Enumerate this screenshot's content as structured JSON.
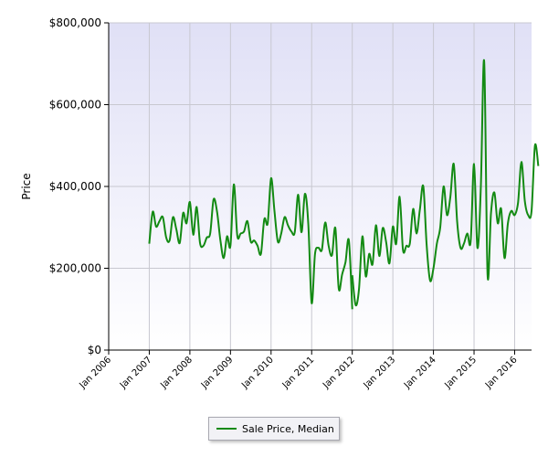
{
  "chart_data": {
    "type": "line",
    "title": "",
    "xlabel": "",
    "ylabel": "Price",
    "ylim": [
      0,
      800000
    ],
    "xlim": [
      "2006-01",
      "2016-06"
    ],
    "y_ticks": [
      {
        "value": 0,
        "label": "$0"
      },
      {
        "value": 200000,
        "label": "$200,000"
      },
      {
        "value": 400000,
        "label": "$400,000"
      },
      {
        "value": 600000,
        "label": "$600,000"
      },
      {
        "value": 800000,
        "label": "$800,000"
      }
    ],
    "x_ticks": [
      {
        "value": "2006-01",
        "label": "Jan 2006"
      },
      {
        "value": "2007-01",
        "label": "Jan 2007"
      },
      {
        "value": "2008-01",
        "label": "Jan 2008"
      },
      {
        "value": "2009-01",
        "label": "Jan 2009"
      },
      {
        "value": "2010-01",
        "label": "Jan 2010"
      },
      {
        "value": "2011-01",
        "label": "Jan 2011"
      },
      {
        "value": "2012-01",
        "label": "Jan 2012"
      },
      {
        "value": "2013-01",
        "label": "Jan 2013"
      },
      {
        "value": "2014-01",
        "label": "Jan 2014"
      },
      {
        "value": "2015-01",
        "label": "Jan 2015"
      },
      {
        "value": "2016-01",
        "label": "Jan 2016"
      }
    ],
    "grid": true,
    "legend_placement": "bottom-center",
    "colors": {
      "line": "#138a13",
      "plot_background_top": "#e0e0f6",
      "plot_background_bottom": "#ffffff",
      "grid": "#c8c8d0"
    },
    "series": [
      {
        "name": "Sale Price, Median",
        "segments": [
          [
            [
              "2007-01",
              260000
            ],
            [
              "2007-02",
              338000
            ],
            [
              "2007-03",
              302000
            ],
            [
              "2007-04",
              315000
            ],
            [
              "2007-05",
              325000
            ],
            [
              "2007-06",
              275000
            ],
            [
              "2007-07",
              268000
            ],
            [
              "2007-08",
              325000
            ],
            [
              "2007-09",
              295000
            ],
            [
              "2007-10",
              262000
            ],
            [
              "2007-11",
              335000
            ],
            [
              "2007-12",
              310000
            ],
            [
              "2008-01",
              362000
            ],
            [
              "2008-02",
              282000
            ],
            [
              "2008-03",
              350000
            ],
            [
              "2008-04",
              262000
            ],
            [
              "2008-05",
              255000
            ],
            [
              "2008-06",
              275000
            ],
            [
              "2008-07",
              285000
            ],
            [
              "2008-08",
              368000
            ],
            [
              "2008-09",
              340000
            ],
            [
              "2008-10",
              270000
            ],
            [
              "2008-11",
              225000
            ],
            [
              "2008-12",
              278000
            ],
            [
              "2009-01",
              255000
            ],
            [
              "2009-02",
              405000
            ],
            [
              "2009-03",
              280000
            ],
            [
              "2009-04",
              285000
            ],
            [
              "2009-05",
              290000
            ],
            [
              "2009-06",
              315000
            ],
            [
              "2009-07",
              265000
            ],
            [
              "2009-08",
              268000
            ],
            [
              "2009-09",
              255000
            ],
            [
              "2009-10",
              235000
            ],
            [
              "2009-11",
              320000
            ],
            [
              "2009-12",
              310000
            ],
            [
              "2010-01",
              420000
            ],
            [
              "2010-02",
              340000
            ],
            [
              "2010-03",
              265000
            ],
            [
              "2010-04",
              285000
            ],
            [
              "2010-05",
              325000
            ],
            [
              "2010-06",
              305000
            ],
            [
              "2010-07",
              290000
            ],
            [
              "2010-08",
              288000
            ],
            [
              "2010-09",
              380000
            ],
            [
              "2010-10",
              288000
            ],
            [
              "2010-11",
              382000
            ],
            [
              "2010-12",
              310000
            ],
            [
              "2011-01",
              115000
            ],
            [
              "2011-02",
              235000
            ],
            [
              "2011-03",
              250000
            ],
            [
              "2011-04",
              245000
            ],
            [
              "2011-05",
              312000
            ],
            [
              "2011-06",
              255000
            ],
            [
              "2011-07",
              232000
            ],
            [
              "2011-08",
              298000
            ],
            [
              "2011-09",
              150000
            ],
            [
              "2011-10",
              185000
            ],
            [
              "2011-11",
              215000
            ],
            [
              "2011-12",
              268000
            ],
            [
              "2012-01",
              100000
            ]
          ],
          [
            [
              "2012-01",
              183000
            ],
            [
              "2012-02",
              110000
            ],
            [
              "2012-03",
              150000
            ],
            [
              "2012-04",
              278000
            ],
            [
              "2012-05",
              180000
            ],
            [
              "2012-06",
              235000
            ],
            [
              "2012-07",
              210000
            ],
            [
              "2012-08",
              305000
            ],
            [
              "2012-09",
              230000
            ],
            [
              "2012-10",
              298000
            ],
            [
              "2012-11",
              265000
            ],
            [
              "2012-12",
              212000
            ],
            [
              "2013-01",
              302000
            ],
            [
              "2013-02",
              260000
            ],
            [
              "2013-03",
              375000
            ],
            [
              "2013-04",
              245000
            ],
            [
              "2013-05",
              255000
            ],
            [
              "2013-06",
              260000
            ],
            [
              "2013-07",
              345000
            ],
            [
              "2013-08",
              285000
            ],
            [
              "2013-09",
              345000
            ],
            [
              "2013-10",
              400000
            ],
            [
              "2013-11",
              255000
            ],
            [
              "2013-12",
              170000
            ],
            [
              "2014-01",
              200000
            ],
            [
              "2014-02",
              260000
            ],
            [
              "2014-03",
              300000
            ],
            [
              "2014-04",
              400000
            ],
            [
              "2014-05",
              330000
            ],
            [
              "2014-06",
              375000
            ],
            [
              "2014-07",
              455000
            ],
            [
              "2014-08",
              315000
            ],
            [
              "2014-09",
              250000
            ],
            [
              "2014-10",
              260000
            ],
            [
              "2014-11",
              285000
            ],
            [
              "2014-12",
              265000
            ],
            [
              "2015-01",
              455000
            ],
            [
              "2015-02",
              250000
            ],
            [
              "2015-03",
              395000
            ],
            [
              "2015-04",
              706000
            ],
            [
              "2015-05",
              185000
            ],
            [
              "2015-06",
              335000
            ],
            [
              "2015-07",
              385000
            ],
            [
              "2015-08",
              310000
            ],
            [
              "2015-09",
              345000
            ],
            [
              "2015-10",
              225000
            ],
            [
              "2015-11",
              310000
            ],
            [
              "2015-12",
              340000
            ],
            [
              "2016-01",
              330000
            ],
            [
              "2016-02",
              360000
            ],
            [
              "2016-03",
              460000
            ],
            [
              "2016-04",
              365000
            ],
            [
              "2016-05",
              330000
            ],
            [
              "2016-06",
              340000
            ],
            [
              "2016-07",
              500000
            ],
            [
              "2016-08",
              450000
            ]
          ]
        ]
      }
    ]
  }
}
